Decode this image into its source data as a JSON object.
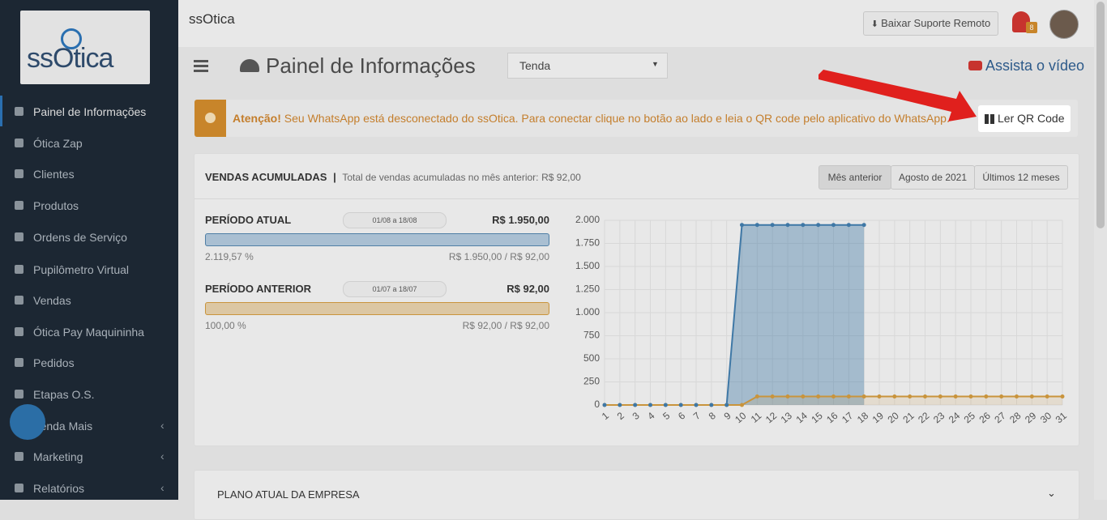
{
  "sidebar": {
    "logo": "ssOtica",
    "menu": [
      "Painel de Informações",
      "Ótica Zap",
      "Clientes",
      "Produtos",
      "Ordens de Serviço",
      "Pupilômetro Virtual",
      "Vendas",
      "Ótica Pay Maquininha",
      "Pedidos",
      "Etapas O.S.",
      "Venda Mais",
      "Marketing",
      "Relatórios"
    ]
  },
  "header": {
    "logo": "ssOtica",
    "support_button": "Baixar Suporte Remoto",
    "notification_count": "8",
    "page_title": "Painel de Informações",
    "store_select": "Tenda",
    "video_link": "Assista o vídeo"
  },
  "alert": {
    "strong": "Atenção!",
    "text": "Seu WhatsApp está desconectado do ssOtica. Para conectar clique no botão ao lado e leia o QR code pelo aplicativo do WhatsApp.",
    "button": "Ler QR Code"
  },
  "sales": {
    "title": "VENDAS ACUMULADAS",
    "subtitle": "Total de vendas acumuladas no mês anterior:",
    "subtitle_value": "R$ 92,00",
    "tabs": [
      "Mês anterior",
      "Agosto de 2021",
      "Últimos 12 meses"
    ],
    "periods": [
      {
        "name": "PERÍODO ATUAL",
        "dates": "01/08 a 18/08",
        "total": "R$ 1.950,00",
        "percent": "2.119,57 %",
        "ratio": "R$ 1.950,00 / R$ 92,00"
      },
      {
        "name": "PERÍODO ANTERIOR",
        "dates": "01/07 a 18/07",
        "total": "R$ 92,00",
        "percent": "100,00 %",
        "ratio": "R$ 92,00 / R$ 92,00"
      }
    ]
  },
  "chart_data": {
    "type": "area",
    "categories": [
      "1",
      "2",
      "3",
      "4",
      "5",
      "6",
      "7",
      "8",
      "9",
      "10",
      "11",
      "12",
      "13",
      "14",
      "15",
      "16",
      "17",
      "18",
      "19",
      "20",
      "21",
      "22",
      "23",
      "24",
      "25",
      "26",
      "27",
      "28",
      "29",
      "30",
      "31"
    ],
    "series": [
      {
        "name": "PERÍODO ATUAL",
        "color": "#3f78a6",
        "values": [
          0,
          0,
          0,
          0,
          0,
          0,
          0,
          0,
          0,
          1950,
          1950,
          1950,
          1950,
          1950,
          1950,
          1950,
          1950,
          1950,
          null,
          null,
          null,
          null,
          null,
          null,
          null,
          null,
          null,
          null,
          null,
          null,
          null
        ]
      },
      {
        "name": "PERÍODO ANTERIOR",
        "color": "#c9943c",
        "values": [
          0,
          0,
          0,
          0,
          0,
          0,
          0,
          0,
          0,
          0,
          92,
          92,
          92,
          92,
          92,
          92,
          92,
          92,
          92,
          92,
          92,
          92,
          92,
          92,
          92,
          92,
          92,
          92,
          92,
          92,
          92
        ]
      }
    ],
    "ylim": [
      0,
      2000
    ],
    "yticks": [
      0,
      250,
      500,
      750,
      {
        "value": 1000,
        "label": "1.000"
      },
      {
        "value": 1250,
        "label": "1.250"
      },
      {
        "value": 1500,
        "label": "1.500"
      },
      {
        "value": 1750,
        "label": "1.750"
      },
      {
        "value": 2000,
        "label": "2.000"
      }
    ],
    "grid": true
  },
  "plan": {
    "title": "PLANO ATUAL DA EMPRESA"
  }
}
